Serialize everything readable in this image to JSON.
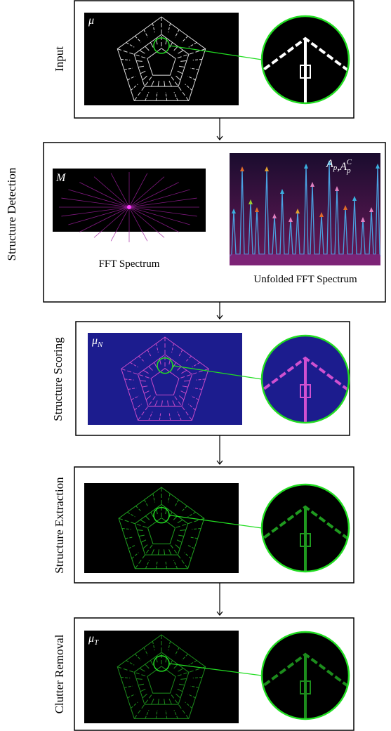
{
  "stages": [
    {
      "label": "Input",
      "image_label": [
        {
          "text": "μ"
        }
      ]
    },
    {
      "label": "Structure Detection",
      "panels": [
        {
          "image_label": [
            {
              "text": "M"
            }
          ],
          "caption": "FFT Spectrum"
        },
        {
          "image_label": [
            {
              "text": "A"
            },
            {
              "sub": "p"
            },
            {
              "text": ",A"
            },
            {
              "sub": "p"
            },
            {
              "sup": "C"
            }
          ],
          "caption": "Unfolded FFT Spectrum"
        }
      ]
    },
    {
      "label": "Structure Scoring",
      "image_label": [
        {
          "text": "μ"
        },
        {
          "sub": "N"
        }
      ]
    },
    {
      "label": "Structure Extraction"
    },
    {
      "label": "Clutter Removal",
      "image_label": [
        {
          "text": "μ"
        },
        {
          "sub": "T"
        }
      ]
    }
  ]
}
